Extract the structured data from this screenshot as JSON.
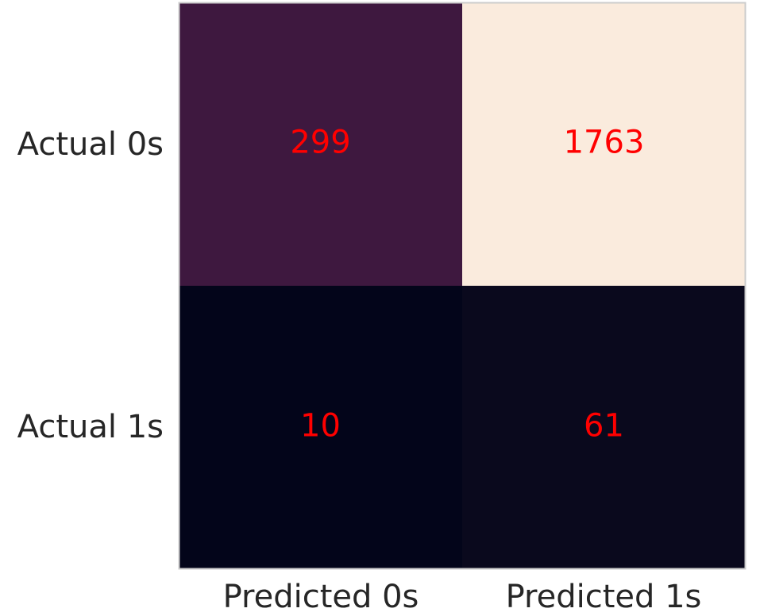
{
  "chart_data": {
    "type": "heatmap",
    "title": "",
    "xlabel": "",
    "ylabel": "",
    "x_tick_labels": [
      "Predicted 0s",
      "Predicted 1s"
    ],
    "y_tick_labels": [
      "Actual 0s",
      "Actual 1s"
    ],
    "values": [
      [
        299,
        1763
      ],
      [
        10,
        61
      ]
    ],
    "value_labels": [
      [
        "299",
        "1763"
      ],
      [
        "10",
        "61"
      ]
    ],
    "value_range": [
      10,
      1763
    ],
    "colormap": "rocket",
    "annotation_color": "#ff0000",
    "grid": false,
    "colorbar": false
  }
}
